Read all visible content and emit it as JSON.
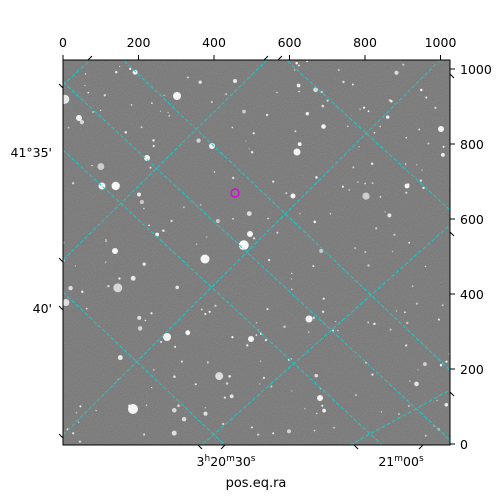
{
  "figure": {
    "x_axis_label": "pos.eq.ra",
    "top_ticks": [
      "0",
      "200",
      "400",
      "600",
      "800",
      "1000"
    ],
    "right_ticks": [
      "0",
      "200",
      "400",
      "600",
      "800",
      "1000"
    ],
    "ra_labels": {
      "ra1_h": "3",
      "ra1_m": "20",
      "ra1_s": "30",
      "ra2_m": "21",
      "ra2_s": "00"
    },
    "dec_labels": [
      "41°35'",
      "40'"
    ]
  },
  "colors": {
    "grid": "#1ec8c8",
    "marker": "#e000e0",
    "background": "#7a7a7a"
  }
}
